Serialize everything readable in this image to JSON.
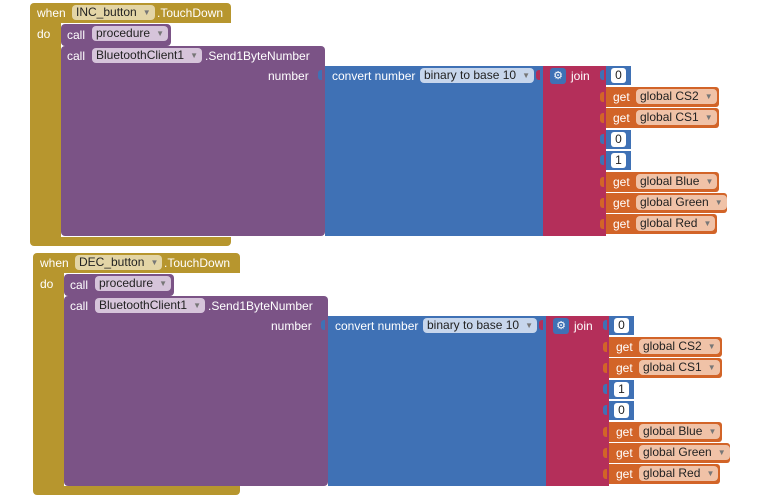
{
  "blocks": [
    {
      "when": "when",
      "component": "INC_button",
      "event": ".TouchDown",
      "do": "do",
      "call_procedure": {
        "call": "call",
        "name": "procedure"
      },
      "call_method": {
        "call": "call",
        "component": "BluetoothClient1",
        "method": ".Send1ByteNumber",
        "param": "number"
      },
      "convert": {
        "label": "convert number",
        "option": "binary to base 10"
      },
      "join": "join",
      "items": [
        {
          "kind": "num",
          "value": "0"
        },
        {
          "kind": "get",
          "get": "get",
          "var": "global CS2"
        },
        {
          "kind": "get",
          "get": "get",
          "var": "global CS1"
        },
        {
          "kind": "num",
          "value": "0"
        },
        {
          "kind": "num",
          "value": "1"
        },
        {
          "kind": "get",
          "get": "get",
          "var": "global Blue"
        },
        {
          "kind": "get",
          "get": "get",
          "var": "global Green"
        },
        {
          "kind": "get",
          "get": "get",
          "var": "global Red"
        }
      ]
    },
    {
      "when": "when",
      "component": "DEC_button",
      "event": ".TouchDown",
      "do": "do",
      "call_procedure": {
        "call": "call",
        "name": "procedure"
      },
      "call_method": {
        "call": "call",
        "component": "BluetoothClient1",
        "method": ".Send1ByteNumber",
        "param": "number"
      },
      "convert": {
        "label": "convert number",
        "option": "binary to base 10"
      },
      "join": "join",
      "items": [
        {
          "kind": "num",
          "value": "0"
        },
        {
          "kind": "get",
          "get": "get",
          "var": "global CS2"
        },
        {
          "kind": "get",
          "get": "get",
          "var": "global CS1"
        },
        {
          "kind": "num",
          "value": "1"
        },
        {
          "kind": "num",
          "value": "0"
        },
        {
          "kind": "get",
          "get": "get",
          "var": "global Blue"
        },
        {
          "kind": "get",
          "get": "get",
          "var": "global Green"
        },
        {
          "kind": "get",
          "get": "get",
          "var": "global Red"
        }
      ]
    }
  ]
}
